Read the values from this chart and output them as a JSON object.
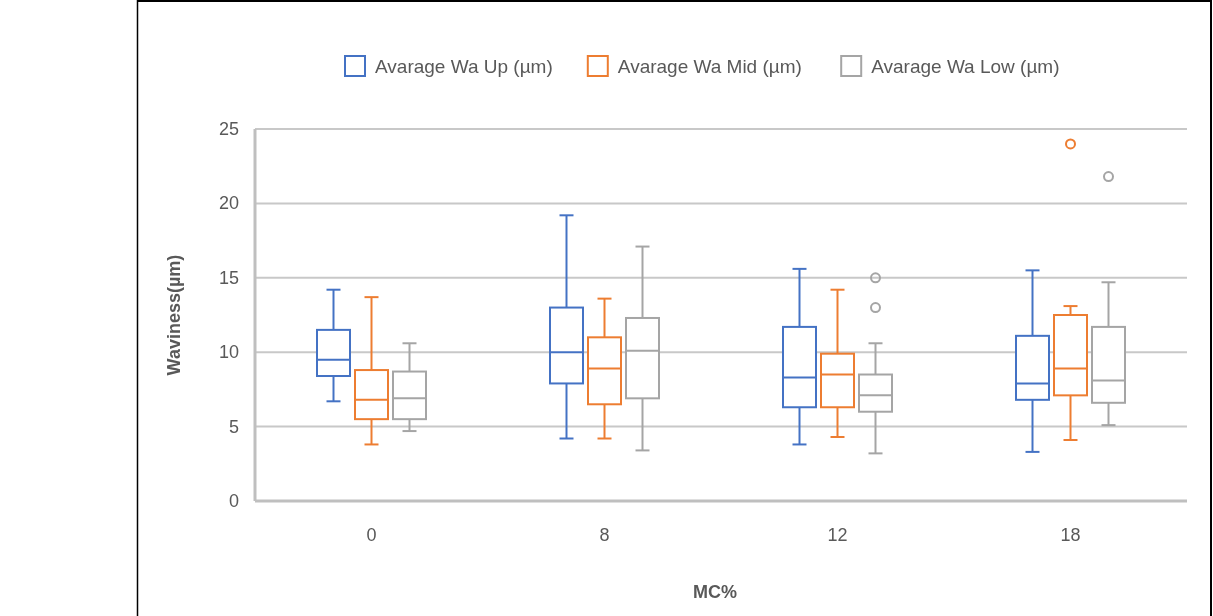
{
  "chart_data": {
    "type": "box",
    "xlabel": "MC%",
    "ylabel": "Waviness(µm)",
    "categories": [
      "0",
      "8",
      "12",
      "18"
    ],
    "ylim": [
      0,
      25
    ],
    "yticks": [
      0,
      5,
      10,
      15,
      20,
      25
    ],
    "grid": "y",
    "legend": "top",
    "series": [
      {
        "name": "Avarage Wa Up (µm)",
        "color": "#4472c4",
        "boxes": [
          {
            "low": 6.7,
            "q1": 8.4,
            "median": 9.5,
            "q3": 11.5,
            "high": 14.2
          },
          {
            "low": 4.2,
            "q1": 7.9,
            "median": 10.0,
            "q3": 13.0,
            "high": 19.2
          },
          {
            "low": 3.8,
            "q1": 6.3,
            "median": 8.3,
            "q3": 11.7,
            "high": 15.6
          },
          {
            "low": 3.3,
            "q1": 6.8,
            "median": 7.9,
            "q3": 11.1,
            "high": 15.5
          }
        ]
      },
      {
        "name": "Avarage Wa Mid (µm)",
        "color": "#ed7d31",
        "boxes": [
          {
            "low": 3.8,
            "q1": 5.5,
            "median": 6.8,
            "q3": 8.8,
            "high": 13.7
          },
          {
            "low": 4.2,
            "q1": 6.5,
            "median": 8.9,
            "q3": 11.0,
            "high": 13.6
          },
          {
            "low": 4.3,
            "q1": 6.3,
            "median": 8.5,
            "q3": 9.9,
            "high": 14.2
          },
          {
            "low": 4.1,
            "q1": 7.1,
            "median": 8.9,
            "q3": 12.5,
            "high": 13.1,
            "outliers": [
              24
            ]
          }
        ]
      },
      {
        "name": "Avarage Wa Low (µm)",
        "color": "#a5a5a5",
        "boxes": [
          {
            "low": 4.7,
            "q1": 5.5,
            "median": 6.9,
            "q3": 8.7,
            "high": 10.6
          },
          {
            "low": 3.4,
            "q1": 6.9,
            "median": 10.1,
            "q3": 12.3,
            "high": 17.1
          },
          {
            "low": 3.2,
            "q1": 6.0,
            "median": 7.1,
            "q3": 8.5,
            "high": 10.6,
            "outliers": [
              15,
              13
            ]
          },
          {
            "low": 5.1,
            "q1": 6.6,
            "median": 8.1,
            "q3": 11.7,
            "high": 14.7,
            "outliers": [
              21.8
            ]
          }
        ]
      }
    ]
  }
}
